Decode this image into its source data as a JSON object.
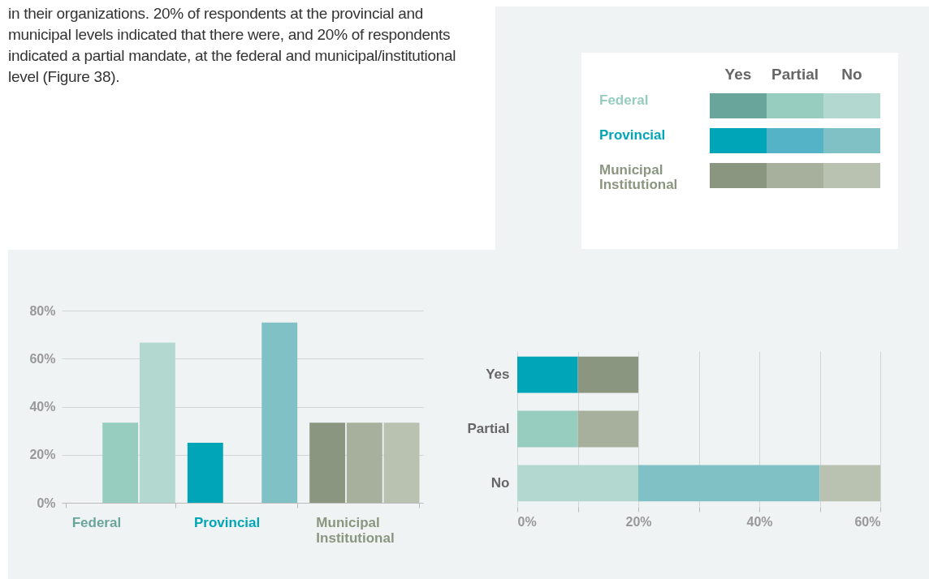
{
  "chart_data": [
    {
      "type": "bar",
      "categories": [
        "Federal",
        "Provincial",
        "Municipal Institutional"
      ],
      "series": [
        {
          "name": "Yes",
          "colors": [
            "#6aa59c",
            "#00a5b7",
            "#8a9680"
          ],
          "values": [
            0,
            25,
            33.3
          ]
        },
        {
          "name": "Partial",
          "colors": [
            "#96cdbf",
            "#55b3c8",
            "#a6b09c"
          ],
          "values": [
            33.3,
            0,
            33.3
          ]
        },
        {
          "name": "No",
          "colors": [
            "#b3d8d0",
            "#7fc1c4",
            "#b9c2b1"
          ],
          "values": [
            66.7,
            75,
            33.3
          ]
        }
      ],
      "ylim": [
        0,
        80
      ],
      "yticks": [
        {
          "value": 0,
          "label": "0%"
        },
        {
          "value": 20,
          "label": "20%"
        },
        {
          "value": 40,
          "label": "40%"
        },
        {
          "value": 60,
          "label": "60%"
        },
        {
          "value": 80,
          "label": "80%"
        }
      ],
      "grid": "y",
      "legend": "top right",
      "annotations": [
        "in their organizations. 20% of respondents at the provincial and municipal levels indicated that there were, and 20% of respondents indicated a partial mandate, at the federal and municipal/institutional level (Figure 38)."
      ]
    },
    {
      "type": "bar",
      "orientation": "horizontal",
      "stacked": true,
      "categories": [
        "Yes",
        "Partial",
        "No"
      ],
      "series": [
        {
          "name": "Federal",
          "colors": [
            "#6aa59c",
            "#96cdbf",
            "#b3d8d0"
          ],
          "values": [
            0,
            10,
            20
          ]
        },
        {
          "name": "Provincial",
          "colors": [
            "#00a5b7",
            "#55b3c8",
            "#7fc1c4"
          ],
          "values": [
            10,
            0,
            30
          ]
        },
        {
          "name": "Municipal Institutional",
          "colors": [
            "#8a9680",
            "#a6b09c",
            "#b9c2b1"
          ],
          "values": [
            10,
            10,
            10
          ]
        }
      ],
      "xlim": [
        0,
        60
      ],
      "xticks": [
        {
          "value": 0,
          "label": "0%"
        },
        {
          "value": 10,
          "label": null
        },
        {
          "value": 20,
          "label": "20%"
        },
        {
          "value": 30,
          "label": null
        },
        {
          "value": 40,
          "label": "40%"
        },
        {
          "value": 50,
          "label": null
        },
        {
          "value": 60,
          "label": "60%"
        }
      ],
      "grid": "x",
      "legend": "top right"
    }
  ]
}
